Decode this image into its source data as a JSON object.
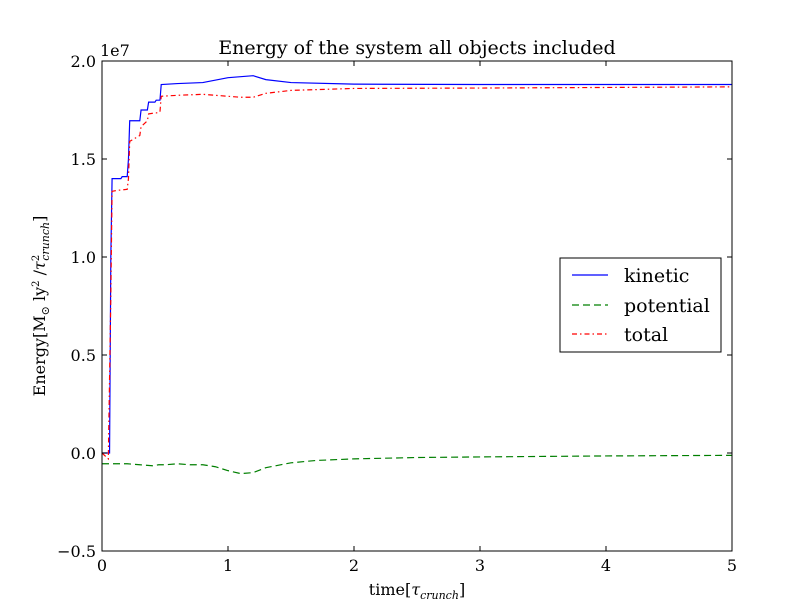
{
  "chart_data": {
    "type": "line",
    "title": "Energy of the system all objects included",
    "xlabel_main": "time",
    "xlabel_sym": "τ",
    "xlabel_sub": "crunch",
    "ylabel_main": "Energy[M",
    "ylabel_sun": "⊙",
    "ylabel_ly": " ly",
    "ylabel_sup": "2",
    "ylabel_slash": " /",
    "ylabel_tau": "τ",
    "ylabel_tau_sup": "2",
    "ylabel_tau_sub": "crunch",
    "ylabel_close": "]",
    "offset_text": "1e7",
    "xlim": [
      0,
      5
    ],
    "ylim": [
      -0.5,
      2.0
    ],
    "y_scale_multiplier": 10000000,
    "xticks": [
      0,
      1,
      2,
      3,
      4,
      5
    ],
    "xtick_labels": [
      "0",
      "1",
      "2",
      "3",
      "4",
      "5"
    ],
    "yticks": [
      -0.5,
      0.0,
      0.5,
      1.0,
      1.5,
      2.0
    ],
    "ytick_labels": [
      "−0.5",
      "0.0",
      "0.5",
      "1.0",
      "1.5",
      "2.0"
    ],
    "grid": false,
    "legend_position": "center-right",
    "series": [
      {
        "name": "kinetic",
        "color": "#0000ff",
        "dash": "solid",
        "x": [
          0.0,
          0.06,
          0.07,
          0.08,
          0.15,
          0.16,
          0.2,
          0.21,
          0.22,
          0.3,
          0.31,
          0.36,
          0.37,
          0.42,
          0.43,
          0.46,
          0.47,
          0.6,
          0.8,
          1.0,
          1.2,
          1.3,
          1.5,
          2.0,
          3.0,
          4.0,
          5.0
        ],
        "y": [
          0.0,
          0.0,
          1.0,
          1.4,
          1.4,
          1.41,
          1.41,
          1.5,
          1.695,
          1.695,
          1.75,
          1.75,
          1.79,
          1.79,
          1.8,
          1.8,
          1.88,
          1.885,
          1.89,
          1.915,
          1.925,
          1.905,
          1.89,
          1.882,
          1.88,
          1.88,
          1.88
        ]
      },
      {
        "name": "potential",
        "color": "#007f00",
        "dash": "dashed",
        "x": [
          0.0,
          0.1,
          0.2,
          0.3,
          0.4,
          0.45,
          0.5,
          0.6,
          0.7,
          0.8,
          0.9,
          1.0,
          1.1,
          1.2,
          1.3,
          1.5,
          1.7,
          2.0,
          2.5,
          3.0,
          4.0,
          5.0
        ],
        "y": [
          -0.055,
          -0.055,
          -0.055,
          -0.06,
          -0.065,
          -0.06,
          -0.06,
          -0.055,
          -0.06,
          -0.06,
          -0.07,
          -0.09,
          -0.105,
          -0.1,
          -0.075,
          -0.05,
          -0.038,
          -0.03,
          -0.023,
          -0.02,
          -0.015,
          -0.012
        ]
      },
      {
        "name": "total",
        "color": "#ff0000",
        "dash": "dashdot",
        "x": [
          0.0,
          0.05,
          0.07,
          0.08,
          0.12,
          0.2,
          0.21,
          0.22,
          0.3,
          0.31,
          0.36,
          0.37,
          0.42,
          0.43,
          0.46,
          0.47,
          0.6,
          0.8,
          1.0,
          1.1,
          1.2,
          1.3,
          1.5,
          2.0,
          3.0,
          4.0,
          5.0
        ],
        "y": [
          0.0,
          -0.03,
          0.8,
          1.335,
          1.34,
          1.345,
          1.4,
          1.59,
          1.62,
          1.665,
          1.695,
          1.73,
          1.735,
          1.735,
          1.74,
          1.82,
          1.825,
          1.83,
          1.82,
          1.815,
          1.815,
          1.835,
          1.85,
          1.86,
          1.862,
          1.865,
          1.868
        ]
      }
    ]
  }
}
